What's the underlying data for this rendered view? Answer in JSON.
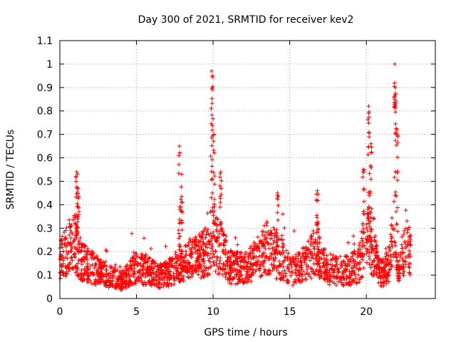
{
  "chart_data": {
    "type": "scatter",
    "title": "Day 300 of 2021, SRMTID for receiver kev2",
    "xlabel": "GPS time / hours",
    "ylabel": "SRMTID / TECUs",
    "xlim": [
      0,
      24.5
    ],
    "ylim": [
      0,
      1.1
    ],
    "x_ticks": [
      0,
      5,
      10,
      15,
      20
    ],
    "x_tick_labels": [
      "0",
      "5",
      "10",
      "15",
      "20"
    ],
    "y_ticks": [
      0,
      0.1,
      0.2,
      0.3,
      0.4,
      0.5,
      0.6,
      0.7,
      0.8,
      0.9,
      1.0,
      1.1
    ],
    "y_tick_labels": [
      "0",
      "0.1",
      "0.2",
      "0.3",
      "0.4",
      "0.5",
      "0.6",
      "0.7",
      "0.8",
      "0.9",
      "1",
      "1.1"
    ],
    "grid": true,
    "marker": "+",
    "series": [
      {
        "name": "kev2",
        "color": "#ff0000",
        "profile_hours": [
          0,
          0.5,
          1,
          1.2,
          1.5,
          2,
          2.5,
          3,
          3.5,
          4,
          4.5,
          5,
          5.5,
          6,
          6.5,
          7,
          7.5,
          7.8,
          8,
          8.5,
          9,
          9.5,
          9.9,
          10.2,
          10.5,
          11,
          12,
          12.5,
          13,
          13.5,
          14,
          14.2,
          14.5,
          15,
          15.5,
          16,
          16.5,
          16.8,
          17,
          17.5,
          18,
          18.5,
          19,
          19.5,
          19.8,
          20.2,
          20.5,
          21,
          21.5,
          21.8,
          22,
          22.3,
          22.6,
          22.9
        ],
        "profile_values": [
          0.16,
          0.22,
          0.24,
          0.2,
          0.16,
          0.14,
          0.12,
          0.11,
          0.09,
          0.08,
          0.1,
          0.14,
          0.13,
          0.11,
          0.1,
          0.11,
          0.13,
          0.16,
          0.15,
          0.17,
          0.18,
          0.2,
          0.22,
          0.24,
          0.22,
          0.14,
          0.13,
          0.15,
          0.19,
          0.22,
          0.2,
          0.18,
          0.18,
          0.12,
          0.13,
          0.15,
          0.19,
          0.22,
          0.16,
          0.13,
          0.12,
          0.12,
          0.13,
          0.15,
          0.2,
          0.27,
          0.18,
          0.11,
          0.15,
          0.3,
          0.12,
          0.14,
          0.24,
          0.18
        ],
        "spike_hours": [
          1.1,
          1.2,
          7.8,
          7.95,
          9.9,
          9.95,
          10.05,
          10.5,
          14.2,
          16.8,
          19.8,
          20.15,
          20.3,
          21.85,
          21.9,
          22.0
        ],
        "spike_values": [
          0.54,
          0.47,
          0.65,
          0.53,
          0.97,
          0.95,
          0.7,
          0.54,
          0.45,
          0.46,
          0.55,
          0.82,
          0.66,
          1.0,
          0.87,
          0.72
        ],
        "count": 2300,
        "x_range": [
          0,
          22.9
        ]
      }
    ]
  }
}
